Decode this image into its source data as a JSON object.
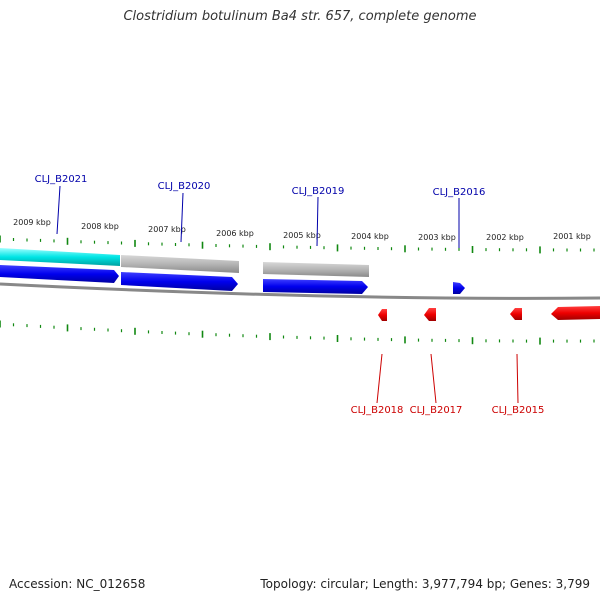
{
  "title": "Clostridium botulinum Ba4 str. 657, complete genome",
  "footer": {
    "accession": "Accession: NC_012658",
    "topology": "Topology: circular; Length: 3,977,794 bp; Genes: 3,799"
  },
  "colors": {
    "forward_cds": "#0000ee",
    "reverse_cds": "#ee0000",
    "rna_cyan": "#00e5e5",
    "pseudo_gray": "#b5b5b5",
    "backbone": "#888888",
    "tick_green": "#118811",
    "label_blue": "#0000aa",
    "label_red": "#cc0000"
  },
  "kbp_labels": [
    "2009 kbp",
    "2008 kbp",
    "2007 kbp",
    "2006 kbp",
    "2005 kbp",
    "2004 kbp",
    "2003 kbp",
    "2002 kbp",
    "2001 kbp"
  ],
  "forward_genes": [
    "CLJ_B2021",
    "CLJ_B2020",
    "CLJ_B2019",
    "CLJ_B2016"
  ],
  "reverse_genes": [
    "CLJ_B2018",
    "CLJ_B2017",
    "CLJ_B2015"
  ]
}
